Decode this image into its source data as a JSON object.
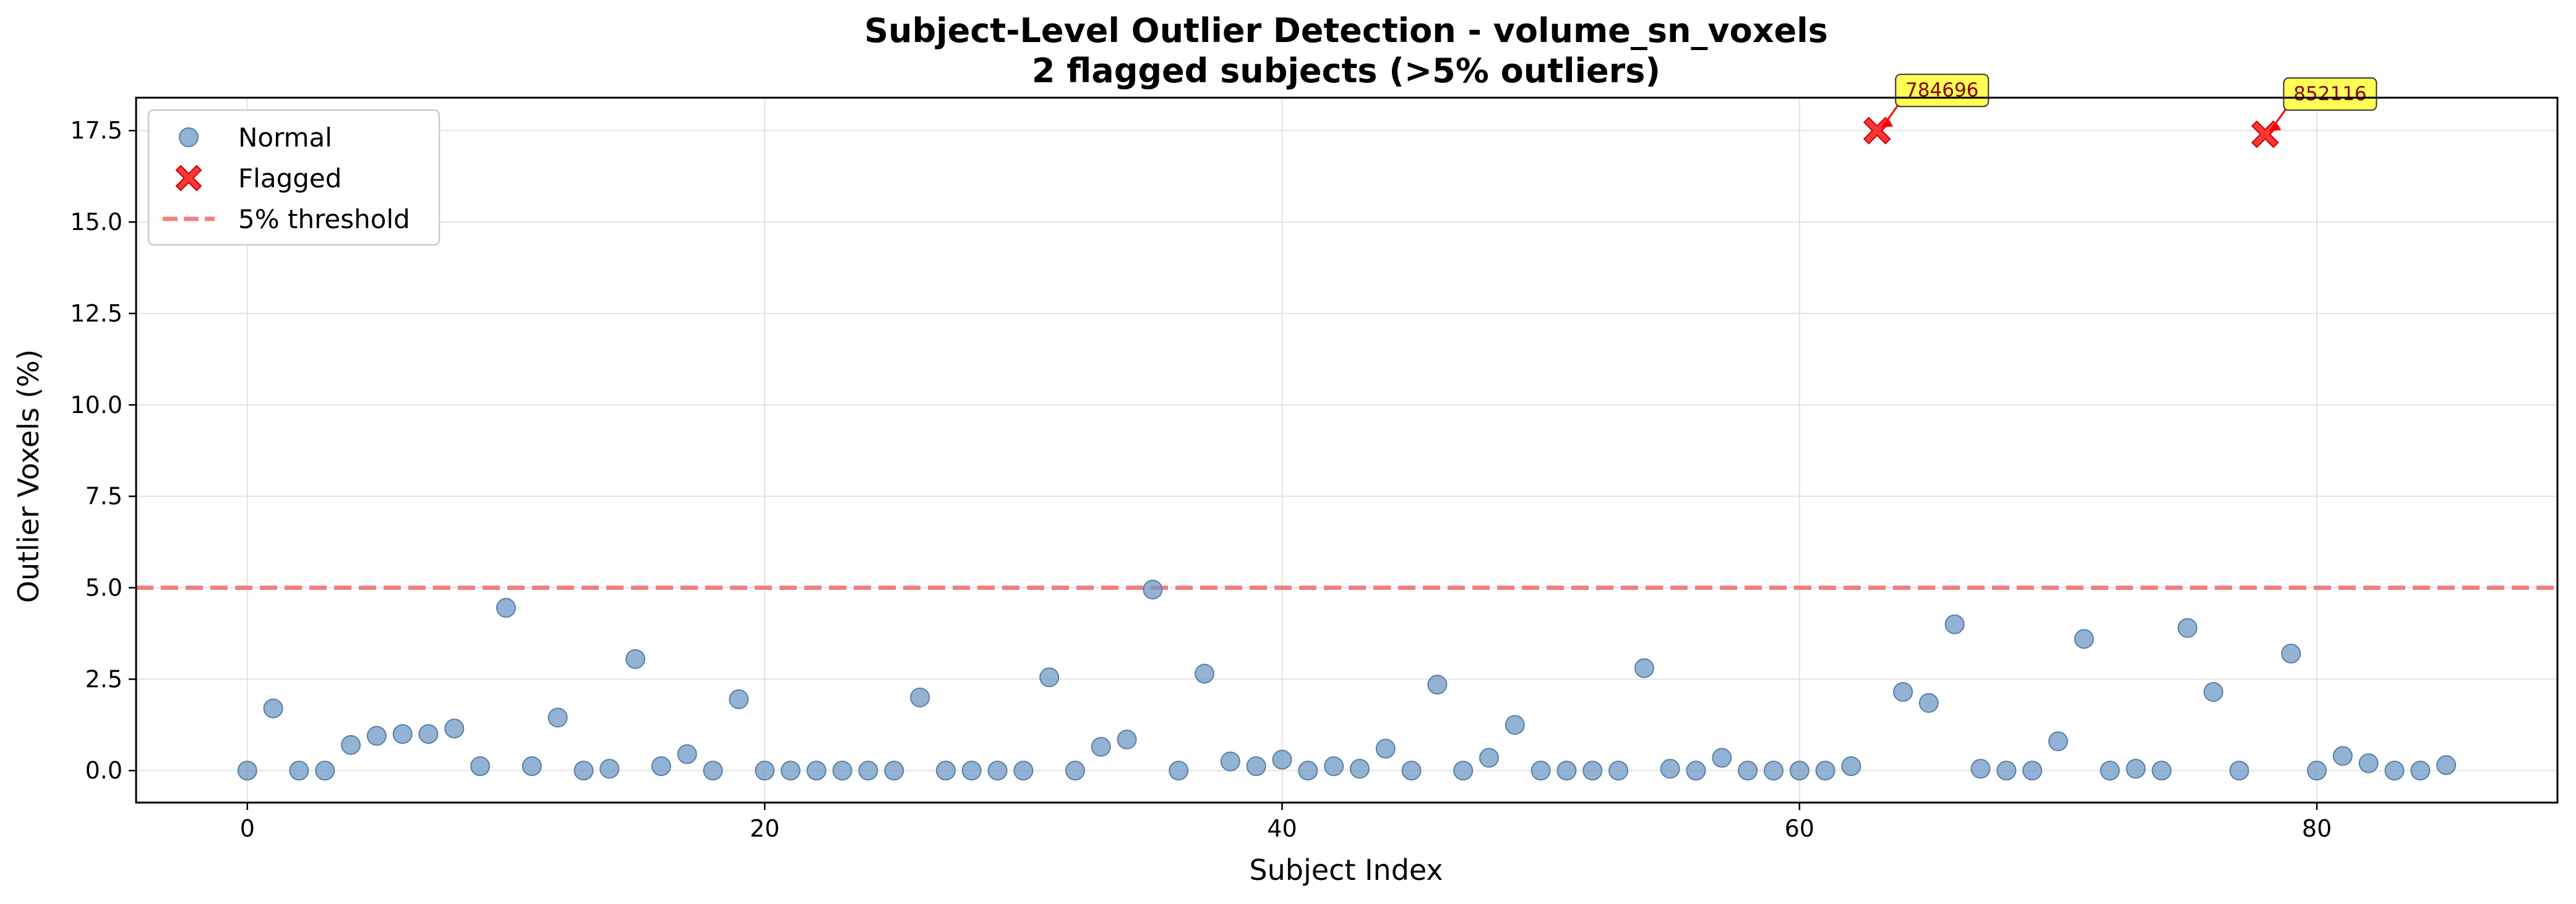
{
  "chart_data": {
    "type": "scatter",
    "title": "Subject-Level Outlier Detection - volume_sn_voxels",
    "subtitle": "2 flagged subjects (>5% outliers)",
    "xlabel": "Subject Index",
    "ylabel": "Outlier Voxels (%)",
    "xlim": [
      -4.3,
      89.3
    ],
    "ylim": [
      -0.875,
      18.4
    ],
    "x_ticks": [
      0,
      20,
      40,
      60,
      80
    ],
    "x_tick_labels": [
      "0",
      "20",
      "40",
      "60",
      "80"
    ],
    "y_ticks": [
      0,
      2.5,
      5,
      7.5,
      10,
      12.5,
      15,
      17.5
    ],
    "y_tick_labels": [
      "0.0",
      "2.5",
      "5.0",
      "7.5",
      "10.0",
      "12.5",
      "15.0",
      "17.5"
    ],
    "grid": true,
    "legend_position": "top-left",
    "threshold": {
      "name": "5% threshold",
      "y": 5.0,
      "color": "#f08080",
      "style": "dashed"
    },
    "series": [
      {
        "name": "Normal",
        "marker": "circle",
        "color": "#6f9ac6",
        "edge_color": "#5a7fa8",
        "x": [
          0,
          1,
          2,
          3,
          4,
          5,
          6,
          7,
          8,
          9,
          10,
          11,
          12,
          13,
          14,
          15,
          16,
          17,
          18,
          19,
          20,
          21,
          22,
          23,
          24,
          25,
          26,
          27,
          28,
          29,
          30,
          31,
          32,
          33,
          34,
          35,
          36,
          37,
          38,
          39,
          40,
          41,
          42,
          43,
          44,
          45,
          46,
          47,
          48,
          49,
          50,
          51,
          52,
          53,
          54,
          55,
          56,
          57,
          58,
          59,
          60,
          61,
          62,
          64,
          65,
          66,
          67,
          68,
          69,
          70,
          71,
          72,
          73,
          74,
          75,
          76,
          77,
          79,
          80,
          81,
          82,
          83,
          84,
          85
        ],
        "y": [
          0.0,
          1.7,
          0.0,
          0.0,
          0.7,
          0.95,
          1.0,
          1.0,
          1.15,
          0.12,
          4.45,
          0.12,
          1.45,
          0.0,
          0.05,
          3.05,
          0.12,
          0.45,
          0.0,
          1.95,
          0.0,
          0.0,
          0.0,
          0.0,
          0.0,
          0.0,
          2.0,
          0.0,
          0.0,
          0.0,
          0.0,
          2.55,
          0.0,
          0.65,
          0.85,
          4.95,
          0.0,
          2.65,
          0.25,
          0.12,
          0.3,
          0.0,
          0.12,
          0.05,
          0.6,
          0.0,
          2.35,
          0.0,
          0.35,
          1.25,
          0.0,
          0.0,
          0.0,
          0.0,
          2.8,
          0.05,
          0.0,
          0.35,
          0.0,
          0.0,
          0.0,
          0.0,
          0.12,
          2.15,
          1.85,
          4.0,
          0.05,
          0.0,
          0.0,
          0.8,
          3.6,
          0.0,
          0.05,
          0.0,
          3.9,
          2.15,
          0.0,
          3.2,
          0.0,
          0.4,
          0.2,
          0.0,
          0.0,
          0.15
        ]
      },
      {
        "name": "Flagged",
        "marker": "x",
        "color": "#ff2020",
        "x": [
          63,
          78
        ],
        "y": [
          17.5,
          17.4
        ],
        "annotations": [
          "784696",
          "852116"
        ]
      }
    ],
    "annotation_box_color": "#ffff55"
  }
}
